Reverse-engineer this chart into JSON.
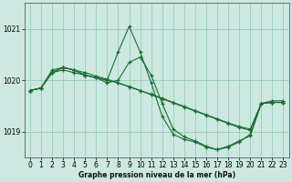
{
  "title": "Graphe pression niveau de la mer (hPa)",
  "bg_color": "#cce8e0",
  "grid_color": "#99ccbb",
  "line_color": "#1a6e2e",
  "marker_color": "#1a6e2e",
  "xlim": [
    -0.5,
    23.5
  ],
  "ylim": [
    1018.5,
    1021.5
  ],
  "yticks": [
    1019,
    1020,
    1021
  ],
  "xticks": [
    0,
    1,
    2,
    3,
    4,
    5,
    6,
    7,
    8,
    9,
    10,
    11,
    12,
    13,
    14,
    15,
    16,
    17,
    18,
    19,
    20,
    21,
    22,
    23
  ],
  "series": [
    {
      "x": [
        0,
        1,
        2,
        3,
        4,
        5,
        6,
        7,
        8,
        9,
        10,
        11,
        12,
        13,
        14,
        15,
        16,
        17,
        18,
        19,
        20,
        21,
        22,
        23
      ],
      "y": [
        1019.8,
        1019.85,
        1020.15,
        1020.2,
        1020.15,
        1020.1,
        1020.05,
        1020.0,
        1019.95,
        1019.88,
        1019.8,
        1019.73,
        1019.65,
        1019.57,
        1019.49,
        1019.41,
        1019.33,
        1019.25,
        1019.17,
        1019.1,
        1019.05,
        1019.55,
        1019.57,
        1019.57
      ]
    },
    {
      "x": [
        0,
        1,
        2,
        3,
        4,
        5,
        6,
        7,
        8,
        9,
        10,
        11,
        12,
        13,
        14,
        15,
        16,
        17,
        18,
        19,
        20,
        21,
        22,
        23
      ],
      "y": [
        1019.8,
        1019.85,
        1020.15,
        1020.25,
        1020.2,
        1020.1,
        1020.05,
        1020.0,
        1020.55,
        1021.05,
        1020.55,
        1019.95,
        1019.3,
        1018.95,
        1018.85,
        1018.8,
        1018.7,
        1018.65,
        1018.7,
        1018.8,
        1018.95,
        1019.55,
        1019.6,
        1019.6
      ]
    },
    {
      "x": [
        0,
        1,
        2,
        3,
        4,
        5,
        6,
        7,
        8,
        9,
        10,
        11,
        12,
        13,
        14,
        15,
        16,
        17,
        18,
        19,
        20,
        21,
        22,
        23
      ],
      "y": [
        1019.8,
        1019.85,
        1020.15,
        1020.25,
        1020.2,
        1020.1,
        1020.05,
        1019.95,
        1020.0,
        1020.35,
        1020.45,
        1020.1,
        1019.55,
        1019.05,
        1018.9,
        1018.82,
        1018.72,
        1018.65,
        1018.72,
        1018.82,
        1018.92,
        1019.55,
        1019.57,
        1019.57
      ]
    },
    {
      "x": [
        0,
        1,
        2,
        3,
        4,
        5,
        6,
        7,
        8,
        9,
        10,
        11,
        12,
        13,
        14,
        15,
        16,
        17,
        18,
        19,
        20,
        21,
        22,
        23
      ],
      "y": [
        1019.8,
        1019.85,
        1020.2,
        1020.25,
        1020.2,
        1020.15,
        1020.08,
        1020.02,
        1019.95,
        1019.87,
        1019.8,
        1019.72,
        1019.64,
        1019.56,
        1019.48,
        1019.4,
        1019.32,
        1019.24,
        1019.16,
        1019.08,
        1019.03,
        1019.55,
        1019.57,
        1019.57
      ]
    }
  ]
}
